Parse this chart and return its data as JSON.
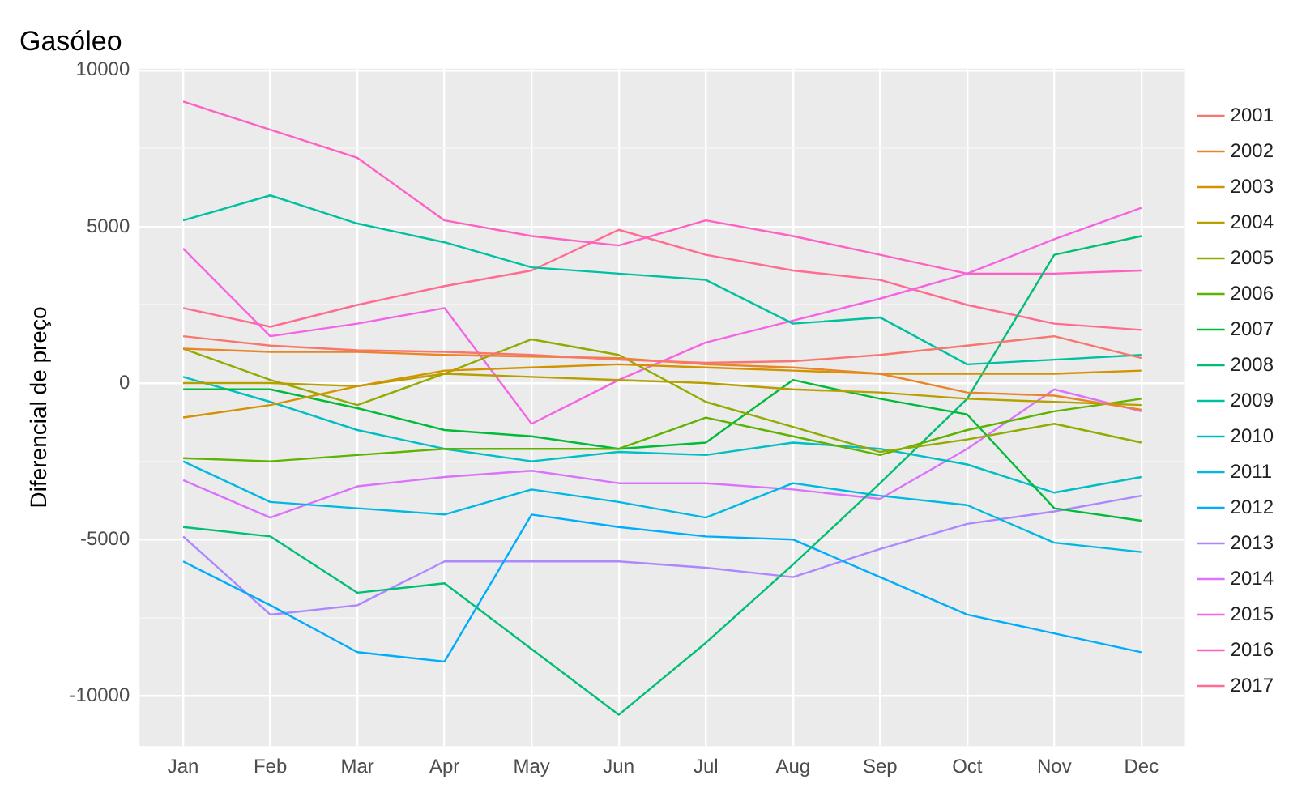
{
  "chart_data": {
    "type": "line",
    "title": "Gasóleo",
    "ylabel": "Diferencial de preço",
    "categories": [
      "Jan",
      "Feb",
      "Mar",
      "Apr",
      "May",
      "Jun",
      "Jul",
      "Aug",
      "Sep",
      "Oct",
      "Nov",
      "Dec"
    ],
    "ylim": [
      -11600,
      10050
    ],
    "yticks": [
      -10000,
      {
        "value": -7500,
        "label": null
      },
      -5000,
      {
        "value": -2500,
        "label": null
      },
      0,
      {
        "value": 2500,
        "label": null
      },
      5000,
      {
        "value": 7500,
        "label": null
      },
      10000
    ],
    "grid": true,
    "legend": "right",
    "marker": "none",
    "line_style": "solid",
    "series": [
      {
        "name": "2001",
        "color": "#f8766d",
        "values": [
          1500,
          1200,
          1050,
          1000,
          900,
          750,
          650,
          700,
          900,
          1200,
          1500,
          800
        ]
      },
      {
        "name": "2002",
        "color": "#e88526",
        "values": [
          1100,
          1000,
          1000,
          900,
          850,
          800,
          600,
          500,
          300,
          -300,
          -400,
          -850
        ]
      },
      {
        "name": "2003",
        "color": "#d39200",
        "values": [
          -1100,
          -700,
          -100,
          400,
          500,
          600,
          500,
          400,
          300,
          300,
          300,
          400
        ]
      },
      {
        "name": "2004",
        "color": "#b79f00",
        "values": [
          0,
          0,
          -100,
          300,
          200,
          100,
          0,
          -200,
          -300,
          -500,
          -600,
          -700
        ]
      },
      {
        "name": "2005",
        "color": "#93aa00",
        "values": [
          1100,
          100,
          -700,
          300,
          1400,
          900,
          -600,
          -1400,
          -2200,
          -1800,
          -1300,
          -1900
        ]
      },
      {
        "name": "2006",
        "color": "#5eb300",
        "values": [
          -2400,
          -2500,
          -2300,
          -2100,
          -2100,
          -2100,
          -1100,
          -1700,
          -2300,
          -1500,
          -900,
          -500
        ]
      },
      {
        "name": "2007",
        "color": "#00ba38",
        "values": [
          -200,
          -200,
          -800,
          -1500,
          -1700,
          -2100,
          -1900,
          100,
          -500,
          -1000,
          -4000,
          -4400
        ]
      },
      {
        "name": "2008",
        "color": "#00bf74",
        "values": [
          -4600,
          -4900,
          -6700,
          -6400,
          -8500,
          -10600,
          -8300,
          -5800,
          -3200,
          -500,
          4100,
          4700
        ]
      },
      {
        "name": "2009",
        "color": "#00c19f",
        "values": [
          5200,
          6000,
          5100,
          4500,
          3700,
          3500,
          3300,
          1900,
          2100,
          600,
          750,
          900
        ]
      },
      {
        "name": "2010",
        "color": "#00bfc4",
        "values": [
          200,
          -600,
          -1500,
          -2100,
          -2500,
          -2200,
          -2300,
          -1900,
          -2100,
          -2600,
          -3500,
          -3000
        ]
      },
      {
        "name": "2011",
        "color": "#00b9e3",
        "values": [
          -2500,
          -3800,
          -4000,
          -4200,
          -3400,
          -3800,
          -4300,
          -3200,
          -3600,
          -3900,
          -5100,
          -5400
        ]
      },
      {
        "name": "2012",
        "color": "#00adfa",
        "values": [
          -5700,
          -7100,
          -8600,
          -8900,
          -4200,
          -4600,
          -4900,
          -5000,
          -6200,
          -7400,
          -8000,
          -8600
        ]
      },
      {
        "name": "2013",
        "color": "#ae87ff",
        "values": [
          -4900,
          -7400,
          -7100,
          -5700,
          -5700,
          -5700,
          -5900,
          -6200,
          -5300,
          -4500,
          -4100,
          -3600
        ]
      },
      {
        "name": "2014",
        "color": "#db72fb",
        "values": [
          -3100,
          -4300,
          -3300,
          -3000,
          -2800,
          -3200,
          -3200,
          -3400,
          -3700,
          -2100,
          -200,
          -900
        ]
      },
      {
        "name": "2015",
        "color": "#f564e3",
        "values": [
          4300,
          1500,
          1900,
          2400,
          -1300,
          100,
          1300,
          2000,
          2700,
          3500,
          4600,
          5600
        ]
      },
      {
        "name": "2016",
        "color": "#ff61c3",
        "values": [
          9000,
          8100,
          7200,
          5200,
          4700,
          4400,
          5200,
          4700,
          4100,
          3500,
          3500,
          3600
        ]
      },
      {
        "name": "2017",
        "color": "#ff6c91",
        "values": [
          2400,
          1800,
          2500,
          3100,
          3600,
          4900,
          4100,
          3600,
          3300,
          2500,
          1900,
          1700
        ]
      }
    ]
  }
}
